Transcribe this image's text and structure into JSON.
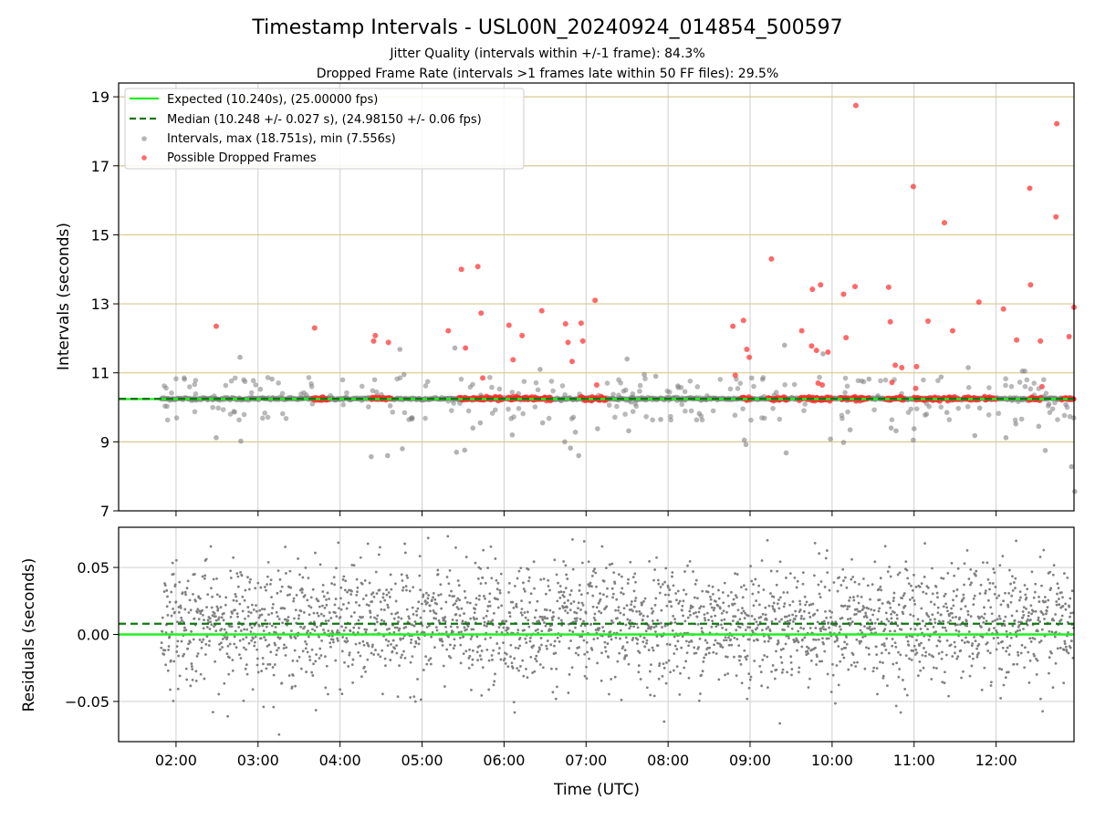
{
  "chart_data": {
    "type": "scatter",
    "title": "Timestamp Intervals - USL00N_20240924_014854_500597",
    "subtitles": [
      "Jitter Quality (intervals within +/-1 frame): 84.3%",
      "Dropped Frame Rate (intervals >1 frames late within 50 FF files): 29.5%"
    ],
    "xlabel": "Time (UTC)",
    "x_range_hours": [
      1.3,
      12.95
    ],
    "x_ticks": [
      {
        "value": 2,
        "label": "02:00"
      },
      {
        "value": 3,
        "label": "03:00"
      },
      {
        "value": 4,
        "label": "04:00"
      },
      {
        "value": 5,
        "label": "05:00"
      },
      {
        "value": 6,
        "label": "06:00"
      },
      {
        "value": 7,
        "label": "07:00"
      },
      {
        "value": 8,
        "label": "08:00"
      },
      {
        "value": 9,
        "label": "09:00"
      },
      {
        "value": 10,
        "label": "10:00"
      },
      {
        "value": 11,
        "label": "11:00"
      },
      {
        "value": 12,
        "label": "12:00"
      }
    ],
    "top_panel": {
      "ylabel": "Intervals (seconds)",
      "ylim": [
        7,
        19.4
      ],
      "y_ticks": [
        7,
        9,
        11,
        13,
        15,
        17,
        19
      ],
      "expected": 10.24,
      "median": 10.248,
      "legend": [
        {
          "label": "Expected (10.240s), (25.00000 fps)",
          "kind": "solid-line",
          "color": "#22ee22"
        },
        {
          "label": "Median (10.248 +/- 0.027 s), (24.98150 +/- 0.06 fps)",
          "kind": "dashed-line",
          "color": "#117711"
        },
        {
          "label": "Intervals, max (18.751s), min (7.556s)",
          "kind": "dot",
          "color": "#808080"
        },
        {
          "label": "Possible Dropped Frames",
          "kind": "dot",
          "color": "#ff2a2a"
        }
      ],
      "dropped_frames": [
        [
          2.49,
          12.35
        ],
        [
          3.69,
          12.3
        ],
        [
          4.41,
          11.92
        ],
        [
          4.43,
          12.08
        ],
        [
          4.59,
          11.88
        ],
        [
          5.32,
          12.22
        ],
        [
          5.48,
          14.0
        ],
        [
          5.53,
          11.72
        ],
        [
          5.68,
          14.08
        ],
        [
          5.72,
          12.73
        ],
        [
          5.74,
          10.85
        ],
        [
          6.06,
          12.38
        ],
        [
          6.11,
          11.38
        ],
        [
          6.22,
          12.08
        ],
        [
          6.46,
          12.8
        ],
        [
          6.75,
          12.42
        ],
        [
          6.78,
          11.88
        ],
        [
          6.83,
          11.33
        ],
        [
          6.94,
          12.44
        ],
        [
          6.96,
          11.92
        ],
        [
          7.11,
          13.1
        ],
        [
          7.13,
          10.65
        ],
        [
          8.79,
          12.35
        ],
        [
          8.82,
          10.93
        ],
        [
          8.92,
          12.52
        ],
        [
          8.96,
          11.68
        ],
        [
          8.99,
          11.45
        ],
        [
          9.26,
          14.3
        ],
        [
          9.63,
          12.22
        ],
        [
          9.75,
          11.78
        ],
        [
          9.76,
          13.42
        ],
        [
          9.81,
          11.65
        ],
        [
          9.83,
          10.7
        ],
        [
          9.86,
          13.55
        ],
        [
          9.88,
          10.65
        ],
        [
          9.95,
          11.6
        ],
        [
          10.14,
          13.28
        ],
        [
          10.17,
          12.02
        ],
        [
          10.28,
          13.5
        ],
        [
          10.29,
          18.75
        ],
        [
          10.69,
          13.48
        ],
        [
          10.71,
          12.48
        ],
        [
          10.73,
          10.72
        ],
        [
          10.77,
          11.22
        ],
        [
          10.85,
          11.15
        ],
        [
          10.99,
          16.4
        ],
        [
          11.02,
          10.55
        ],
        [
          11.03,
          11.18
        ],
        [
          11.17,
          12.5
        ],
        [
          11.37,
          15.35
        ],
        [
          11.47,
          12.22
        ],
        [
          11.79,
          13.05
        ],
        [
          12.09,
          12.85
        ],
        [
          12.25,
          11.95
        ],
        [
          12.41,
          16.35
        ],
        [
          12.42,
          13.55
        ],
        [
          12.54,
          11.92
        ],
        [
          12.56,
          10.6
        ],
        [
          12.73,
          15.52
        ],
        [
          12.74,
          18.22
        ],
        [
          12.89,
          12.05
        ],
        [
          12.95,
          12.9
        ]
      ],
      "dropped_bands": [
        [
          3.67,
          3.86
        ],
        [
          4.38,
          4.62
        ],
        [
          5.45,
          5.98
        ],
        [
          6.05,
          6.58
        ],
        [
          6.93,
          7.25
        ],
        [
          8.9,
          9.02
        ],
        [
          9.22,
          9.45
        ],
        [
          9.6,
          10.0
        ],
        [
          10.1,
          10.45
        ],
        [
          10.65,
          10.88
        ],
        [
          11.0,
          11.32
        ],
        [
          11.35,
          11.55
        ],
        [
          11.6,
          11.8
        ],
        [
          11.85,
          12.0
        ],
        [
          12.4,
          12.55
        ],
        [
          12.8,
          12.95
        ]
      ],
      "grey_outliers": [
        [
          2.49,
          9.12
        ],
        [
          2.78,
          11.45
        ],
        [
          2.79,
          9.02
        ],
        [
          3.17,
          10.82
        ],
        [
          4.38,
          8.57
        ],
        [
          4.58,
          8.6
        ],
        [
          4.73,
          11.68
        ],
        [
          4.76,
          8.8
        ],
        [
          4.78,
          10.95
        ],
        [
          4.88,
          9.7
        ],
        [
          5.4,
          11.72
        ],
        [
          5.42,
          8.7
        ],
        [
          5.52,
          8.76
        ],
        [
          5.62,
          9.4
        ],
        [
          5.71,
          9.55
        ],
        [
          6.1,
          9.2
        ],
        [
          6.44,
          11.1
        ],
        [
          6.47,
          9.55
        ],
        [
          6.74,
          9.0
        ],
        [
          6.81,
          8.82
        ],
        [
          6.87,
          9.28
        ],
        [
          6.91,
          8.6
        ],
        [
          7.14,
          9.38
        ],
        [
          7.5,
          11.4
        ],
        [
          7.52,
          9.32
        ],
        [
          7.71,
          10.95
        ],
        [
          7.85,
          10.9
        ],
        [
          7.91,
          9.65
        ],
        [
          8.12,
          10.62
        ],
        [
          8.38,
          9.82
        ],
        [
          8.93,
          9.05
        ],
        [
          8.95,
          8.92
        ],
        [
          9.02,
          10.85
        ],
        [
          9.42,
          11.8
        ],
        [
          9.44,
          8.68
        ],
        [
          9.89,
          11.55
        ],
        [
          9.98,
          9.08
        ],
        [
          10.14,
          8.98
        ],
        [
          10.22,
          9.35
        ],
        [
          10.45,
          10.82
        ],
        [
          10.72,
          9.4
        ],
        [
          10.78,
          9.32
        ],
        [
          10.99,
          9.05
        ],
        [
          11.0,
          9.38
        ],
        [
          11.33,
          10.88
        ],
        [
          11.4,
          9.85
        ],
        [
          11.66,
          11.15
        ],
        [
          11.74,
          9.18
        ],
        [
          11.8,
          9.98
        ],
        [
          12.12,
          9.12
        ],
        [
          12.24,
          9.52
        ],
        [
          12.32,
          11.05
        ],
        [
          12.35,
          11.05
        ],
        [
          12.52,
          9.45
        ],
        [
          12.6,
          8.75
        ],
        [
          12.92,
          8.28
        ],
        [
          12.96,
          7.56
        ],
        [
          12.85,
          10.08
        ]
      ]
    },
    "bottom_panel": {
      "ylabel": "Residuals (seconds)",
      "ylim": [
        -0.08,
        0.08
      ],
      "y_ticks": [
        {
          "value": 0.05,
          "label": "0.05"
        },
        {
          "value": 0.0,
          "label": "0.00"
        },
        {
          "value": -0.05,
          "label": "−0.05"
        }
      ],
      "expected_residual": 0.0,
      "median_residual": 0.008,
      "residual_mean": 0.008,
      "residual_std": 0.022,
      "data_start_hour": 1.82,
      "data_end_hour": 12.95
    },
    "grid": true,
    "colors": {
      "expected_line": "#22ee22",
      "median_line": "#117711",
      "interval_dots": "#808080",
      "dropped_dots": "#ff2a2a",
      "hgrid_top": "#d8c890",
      "grid": "#cfcfcf"
    }
  }
}
